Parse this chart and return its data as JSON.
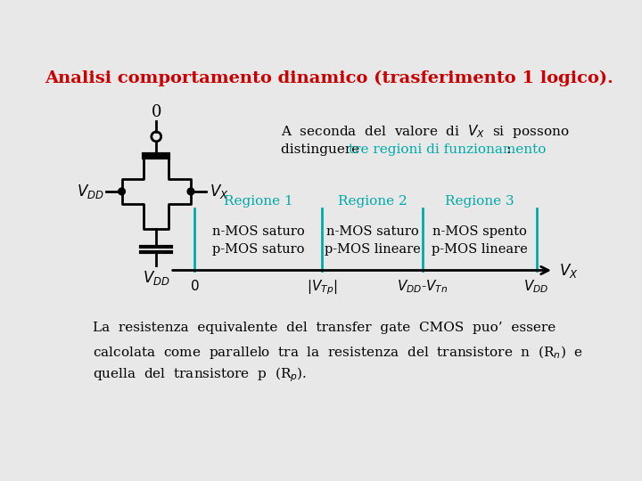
{
  "title": "Analisi comportamento dinamico (trasferimento 1 logico).",
  "title_color": "#cc0000",
  "bg_color": "#e8e8e8",
  "teal_color": "#00aaaa",
  "black_color": "#000000",
  "region_labels": [
    "Regione 1",
    "Regione 2",
    "Regione 3"
  ],
  "region1_lines": [
    "n-MOS saturo",
    "p-MOS saturo"
  ],
  "region2_lines": [
    "n-MOS saturo",
    "p-MOS lineare"
  ],
  "region3_lines": [
    "n-MOS spento",
    "p-MOS lineare"
  ],
  "footer_line1": "La  resistenza  equivalente  del  transfer  gate  CMOS  puo’  essere",
  "footer_line2": "calcolata  come  parallelo  tra  la  resistenza  del  transistore  n  (R$_n$)  e",
  "footer_line3": "quella  del  transistore  p  (R$_p$)."
}
